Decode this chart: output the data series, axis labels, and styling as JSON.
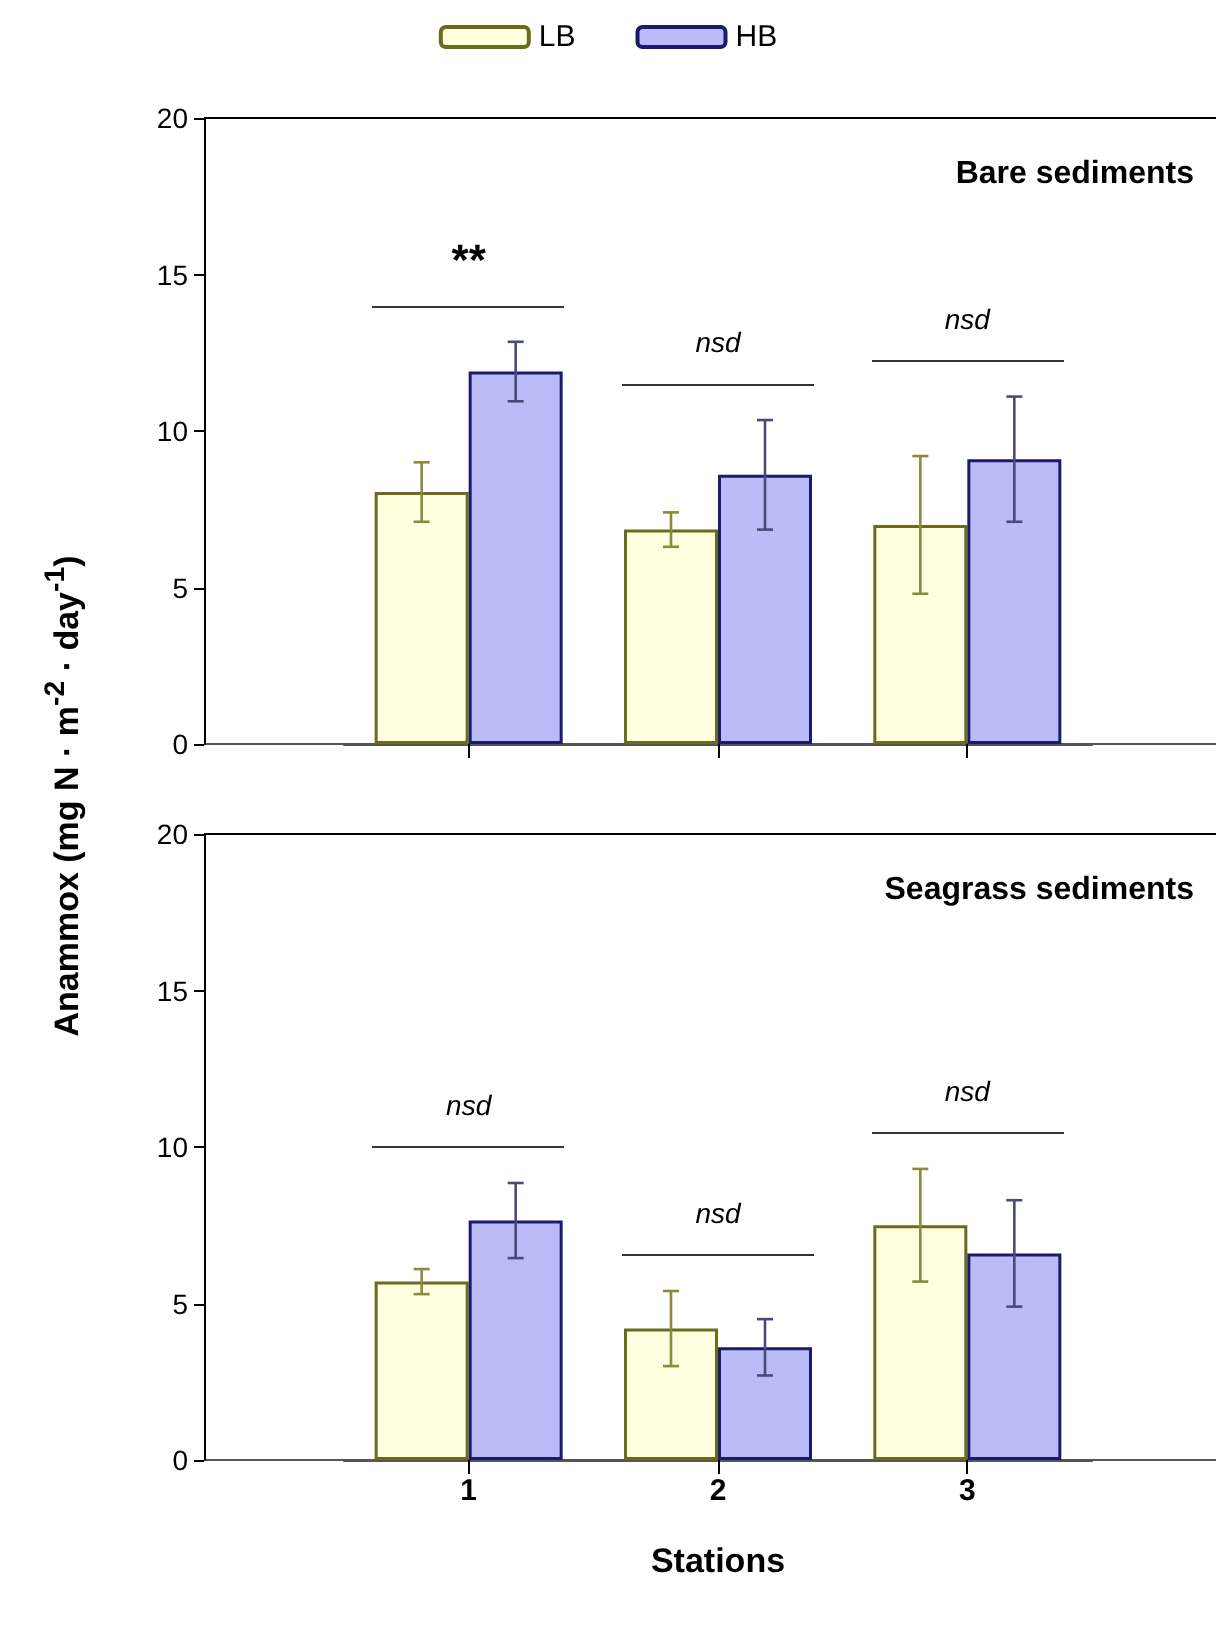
{
  "chart_data": [
    {
      "type": "bar",
      "title": "Bare sediments",
      "ylabel": "Anammox  (mg N · m$^{-2}$ · day$^{-1}$)",
      "categories": [
        "1",
        "2",
        "3"
      ],
      "ylim": [
        0,
        20
      ],
      "yticks": [
        0,
        5,
        10,
        15,
        20
      ],
      "grid": false,
      "legend": "top",
      "tick_labels": "y",
      "series": [
        {
          "name": "LB",
          "color": "#ffffe0",
          "values": [
            8.05,
            6.85,
            7.0
          ],
          "errors": [
            0.95,
            0.55,
            2.2
          ]
        },
        {
          "name": "HB",
          "color": "#bbbbf8",
          "values": [
            11.9,
            8.6,
            9.1
          ],
          "errors": [
            0.95,
            1.75,
            2.0
          ]
        }
      ],
      "annotations": [
        "**",
        "nsd",
        "nsd"
      ]
    },
    {
      "type": "bar",
      "title": "Seagrass sediments",
      "xlabel": "Stations",
      "categories": [
        "1",
        "2",
        "3"
      ],
      "ylim": [
        0,
        20
      ],
      "yticks": [
        0,
        5,
        10,
        15,
        20
      ],
      "grid": false,
      "legend": false,
      "series": [
        {
          "color": "#ffffe0",
          "values": [
            5.7,
            4.2,
            7.5
          ],
          "errors": [
            0.4,
            1.2,
            1.8
          ]
        },
        {
          "color": "#bbbbf8",
          "values": [
            7.65,
            3.6,
            6.6
          ],
          "errors": [
            1.2,
            0.9,
            1.7
          ]
        }
      ],
      "annotations": [
        "nsd",
        "nsd",
        "nsd"
      ]
    }
  ]
}
